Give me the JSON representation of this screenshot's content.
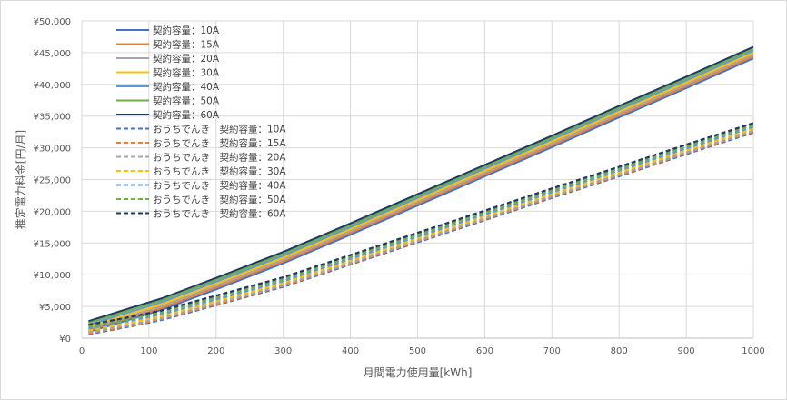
{
  "chart_data": {
    "type": "line",
    "title": "",
    "xlabel": "月間電力使用量[kWh]",
    "ylabel": "推定電力料金[円/月]",
    "x": [
      10,
      80,
      120,
      200,
      300,
      400,
      500,
      600,
      700,
      800,
      900,
      1000
    ],
    "xlim": [
      0,
      1000
    ],
    "ylim": [
      0,
      50000
    ],
    "x_ticks": [
      "0",
      "100",
      "200",
      "300",
      "400",
      "500",
      "600",
      "700",
      "800",
      "900",
      "1000"
    ],
    "y_ticks": [
      "¥0",
      "¥5,000",
      "¥10,000",
      "¥15,000",
      "¥20,000",
      "¥25,000",
      "¥30,000",
      "¥35,000",
      "¥40,000",
      "¥45,000",
      "¥50,000"
    ],
    "grid": true,
    "legend_position": "top-left",
    "series": [
      {
        "name": "契約容量：10A",
        "color": "#4472c4",
        "dash": false,
        "values": [
          1000,
          3200,
          4500,
          7700,
          11800,
          16300,
          20900,
          25500,
          30100,
          34800,
          39400,
          44100
        ]
      },
      {
        "name": "契約容量：15A",
        "color": "#ed7d31",
        "dash": false,
        "values": [
          1200,
          3500,
          4800,
          8000,
          12100,
          16600,
          21200,
          25800,
          30400,
          35100,
          39700,
          44400
        ]
      },
      {
        "name": "契約容量：20A",
        "color": "#a5a5a5",
        "dash": false,
        "values": [
          1500,
          3800,
          5100,
          8300,
          12400,
          16900,
          21500,
          26100,
          30700,
          35400,
          40000,
          44700
        ]
      },
      {
        "name": "契約容量：30A",
        "color": "#ffc000",
        "dash": false,
        "values": [
          1800,
          4100,
          5400,
          8600,
          12700,
          17200,
          21800,
          26400,
          31000,
          35700,
          40300,
          45000
        ]
      },
      {
        "name": "契約容量：40A",
        "color": "#5b9bd5",
        "dash": false,
        "values": [
          2100,
          4400,
          5700,
          8900,
          13000,
          17500,
          22100,
          26700,
          31300,
          36000,
          40600,
          45300
        ]
      },
      {
        "name": "契約容量：50A",
        "color": "#70ad47",
        "dash": false,
        "values": [
          2400,
          4700,
          6000,
          9200,
          13300,
          17800,
          22400,
          27000,
          31600,
          36300,
          40900,
          45600
        ]
      },
      {
        "name": "契約容量：60A",
        "color": "#1f3864",
        "dash": false,
        "values": [
          2700,
          5000,
          6300,
          9500,
          13600,
          18100,
          22700,
          27300,
          31900,
          36600,
          41200,
          45900
        ]
      },
      {
        "name": "おうちでんき　契約容量：10A",
        "color": "#4472c4",
        "dash": true,
        "values": [
          600,
          2000,
          2900,
          5200,
          8100,
          11600,
          15100,
          18600,
          22100,
          25500,
          29000,
          32400
        ]
      },
      {
        "name": "おうちでんき　契約容量：15A",
        "color": "#ed7d31",
        "dash": true,
        "values": [
          750,
          2150,
          3050,
          5350,
          8250,
          11750,
          15250,
          18750,
          22250,
          25650,
          29150,
          32550
        ]
      },
      {
        "name": "おうちでんき　契約容量：20A",
        "color": "#a5a5a5",
        "dash": true,
        "values": [
          900,
          2300,
          3200,
          5500,
          8400,
          11900,
          15400,
          18900,
          22400,
          25800,
          29300,
          32700
        ]
      },
      {
        "name": "おうちでんき　契約容量：30A",
        "color": "#ffc000",
        "dash": true,
        "values": [
          1200,
          2600,
          3500,
          5800,
          8700,
          12200,
          15700,
          19200,
          22700,
          26100,
          29600,
          33000
        ]
      },
      {
        "name": "おうちでんき　契約容量：40A",
        "color": "#5b9bd5",
        "dash": true,
        "values": [
          1500,
          2900,
          3800,
          6100,
          9000,
          12500,
          16000,
          19500,
          23000,
          26400,
          29900,
          33300
        ]
      },
      {
        "name": "おうちでんき　契約容量：50A",
        "color": "#70ad47",
        "dash": true,
        "values": [
          1800,
          3200,
          4100,
          6400,
          9300,
          12800,
          16300,
          19800,
          23300,
          26700,
          30200,
          33600
        ]
      },
      {
        "name": "おうちでんき　契約容量：60A",
        "color": "#1f3864",
        "dash": true,
        "values": [
          2100,
          3500,
          4400,
          6700,
          9600,
          13100,
          16600,
          20100,
          23600,
          27000,
          30500,
          33900
        ]
      }
    ]
  }
}
